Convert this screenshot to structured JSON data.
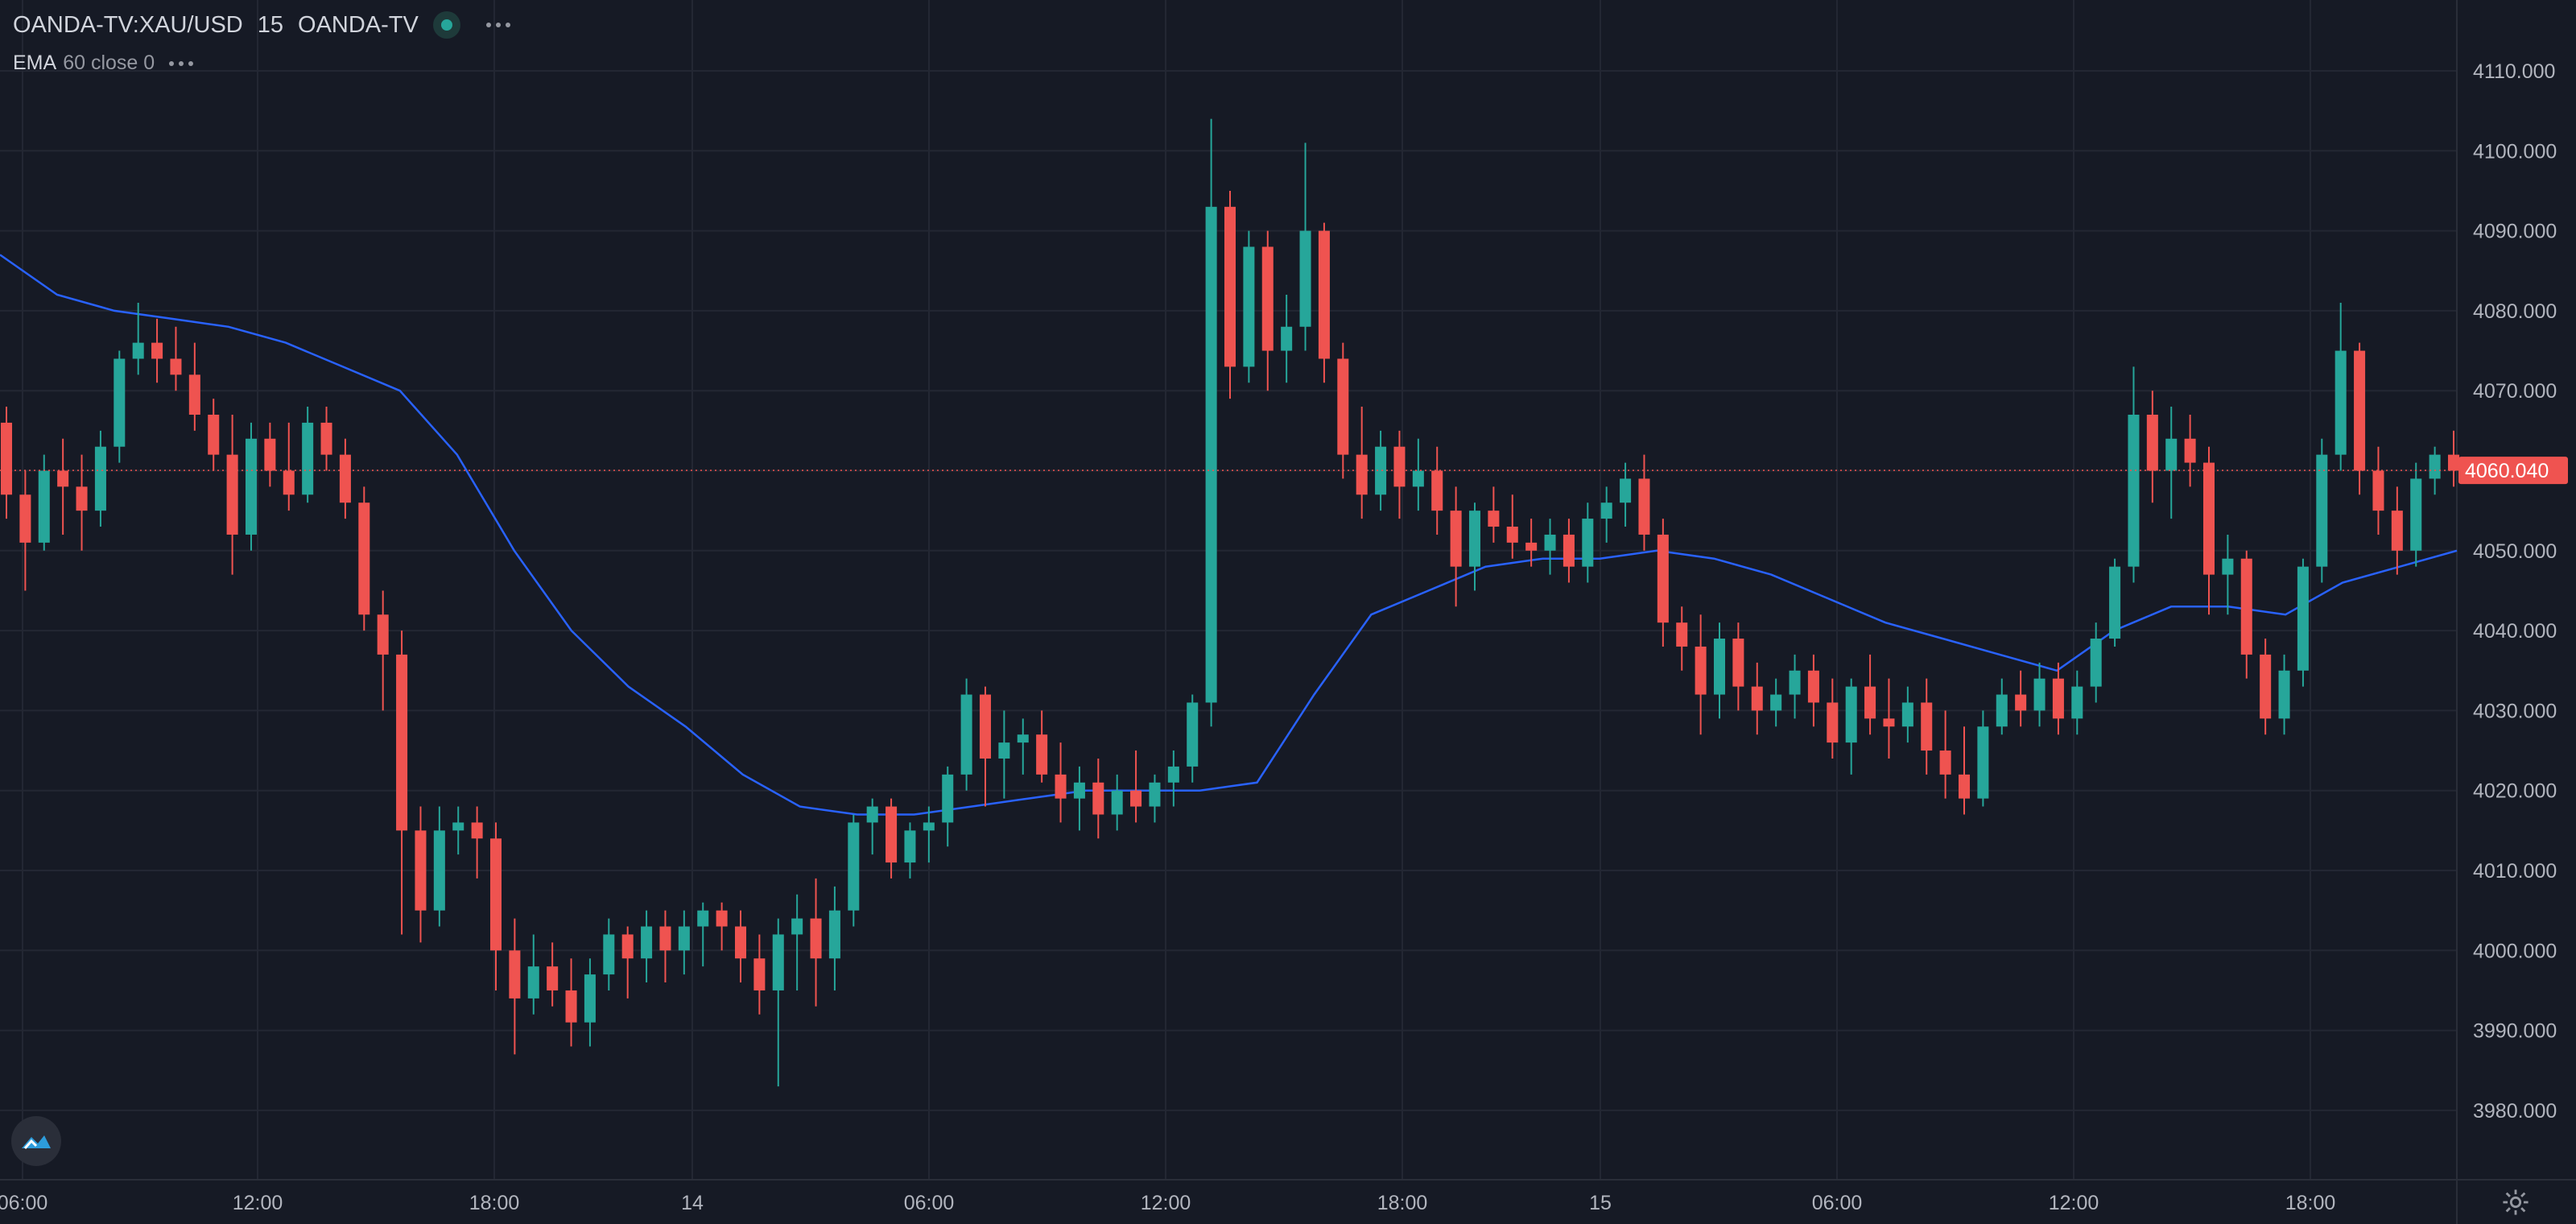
{
  "header": {
    "symbol": "OANDA-TV:XAU/USD",
    "interval": "15",
    "source": "OANDA-TV",
    "indicator_label": "EMA",
    "indicator_params": "60 close 0"
  },
  "colors": {
    "background": "#161a25",
    "grid": "#232733",
    "up": "#26a69a",
    "down": "#ef5350",
    "ema": "#2962ff",
    "text": "#b2b5be",
    "last_price_bg": "#ef5350"
  },
  "icons": {
    "logo": "tradingview-cloud-logo",
    "settings": "gear-icon",
    "status": "live-status-dot",
    "more": "more-dots-icon"
  },
  "chart_data": {
    "type": "candlestick",
    "title": "OANDA-TV:XAU/USD 15 OANDA-TV",
    "ylabel": "",
    "xlabel": "",
    "ylim": [
      3975,
      4115
    ],
    "grid": true,
    "y_ticks": [
      "4110.000",
      "4100.000",
      "4090.000",
      "4080.000",
      "4070.000",
      "4060.000",
      "4050.000",
      "4040.000",
      "4030.000",
      "4020.000",
      "4010.000",
      "4000.000",
      "3990.000",
      "3980.000"
    ],
    "x_ticks": [
      "06:00",
      "12:00",
      "18:00",
      "14",
      "06:00",
      "12:00",
      "18:00",
      "15",
      "06:00",
      "12:00",
      "18:00"
    ],
    "last_price": "4060.040",
    "indicator": {
      "name": "EMA",
      "period": 60,
      "source": "close",
      "offset": 0
    },
    "ema_path": [
      4087,
      4082,
      4080,
      4079,
      4078,
      4076,
      4073,
      4070,
      4062,
      4050,
      4040,
      4033,
      4028,
      4022,
      4018,
      4017,
      4017,
      4018,
      4019,
      4020,
      4020,
      4020,
      4021,
      4032,
      4042,
      4045,
      4048,
      4049,
      4049,
      4050,
      4049,
      4047,
      4044,
      4041,
      4039,
      4037,
      4035,
      4040,
      4043,
      4043,
      4042,
      4046,
      4048,
      4050
    ],
    "candles": [
      [
        4066,
        4068,
        4054,
        4057
      ],
      [
        4057,
        4060,
        4045,
        4051
      ],
      [
        4051,
        4062,
        4050,
        4060
      ],
      [
        4060,
        4064,
        4052,
        4058
      ],
      [
        4058,
        4062,
        4050,
        4055
      ],
      [
        4055,
        4065,
        4053,
        4063
      ],
      [
        4063,
        4075,
        4061,
        4074
      ],
      [
        4074,
        4081,
        4072,
        4076
      ],
      [
        4076,
        4079,
        4071,
        4074
      ],
      [
        4074,
        4078,
        4070,
        4072
      ],
      [
        4072,
        4076,
        4065,
        4067
      ],
      [
        4067,
        4069,
        4060,
        4062
      ],
      [
        4062,
        4067,
        4047,
        4052
      ],
      [
        4052,
        4066,
        4050,
        4064
      ],
      [
        4064,
        4066,
        4058,
        4060
      ],
      [
        4060,
        4066,
        4055,
        4057
      ],
      [
        4057,
        4068,
        4056,
        4066
      ],
      [
        4066,
        4068,
        4060,
        4062
      ],
      [
        4062,
        4064,
        4054,
        4056
      ],
      [
        4056,
        4058,
        4040,
        4042
      ],
      [
        4042,
        4045,
        4030,
        4037
      ],
      [
        4037,
        4040,
        4002,
        4015
      ],
      [
        4015,
        4018,
        4001,
        4005
      ],
      [
        4005,
        4018,
        4003,
        4015
      ],
      [
        4015,
        4018,
        4012,
        4016
      ],
      [
        4016,
        4018,
        4009,
        4014
      ],
      [
        4014,
        4016,
        3995,
        4000
      ],
      [
        4000,
        4004,
        3987,
        3994
      ],
      [
        3994,
        4002,
        3992,
        3998
      ],
      [
        3998,
        4001,
        3993,
        3995
      ],
      [
        3995,
        3999,
        3988,
        3991
      ],
      [
        3991,
        3999,
        3988,
        3997
      ],
      [
        3997,
        4004,
        3995,
        4002
      ],
      [
        4002,
        4003,
        3994,
        3999
      ],
      [
        3999,
        4005,
        3996,
        4003
      ],
      [
        4003,
        4005,
        3996,
        4000
      ],
      [
        4000,
        4005,
        3997,
        4003
      ],
      [
        4003,
        4006,
        3998,
        4005
      ],
      [
        4005,
        4006,
        4000,
        4003
      ],
      [
        4003,
        4005,
        3996,
        3999
      ],
      [
        3999,
        4002,
        3992,
        3995
      ],
      [
        3995,
        4004,
        3983,
        4002
      ],
      [
        4002,
        4007,
        3995,
        4004
      ],
      [
        4004,
        4009,
        3993,
        3999
      ],
      [
        3999,
        4008,
        3995,
        4005
      ],
      [
        4005,
        4017,
        4003,
        4016
      ],
      [
        4016,
        4019,
        4012,
        4018
      ],
      [
        4018,
        4019,
        4009,
        4011
      ],
      [
        4011,
        4016,
        4009,
        4015
      ],
      [
        4015,
        4018,
        4011,
        4016
      ],
      [
        4016,
        4023,
        4013,
        4022
      ],
      [
        4022,
        4034,
        4020,
        4032
      ],
      [
        4032,
        4033,
        4018,
        4024
      ],
      [
        4024,
        4030,
        4019,
        4026
      ],
      [
        4026,
        4029,
        4022,
        4027
      ],
      [
        4027,
        4030,
        4021,
        4022
      ],
      [
        4022,
        4026,
        4016,
        4019
      ],
      [
        4019,
        4023,
        4015,
        4021
      ],
      [
        4021,
        4024,
        4014,
        4017
      ],
      [
        4017,
        4022,
        4015,
        4020
      ],
      [
        4020,
        4025,
        4016,
        4018
      ],
      [
        4018,
        4022,
        4016,
        4021
      ],
      [
        4021,
        4025,
        4018,
        4023
      ],
      [
        4023,
        4032,
        4021,
        4031
      ],
      [
        4031,
        4104,
        4028,
        4093
      ],
      [
        4093,
        4095,
        4069,
        4073
      ],
      [
        4073,
        4090,
        4071,
        4088
      ],
      [
        4088,
        4090,
        4070,
        4075
      ],
      [
        4075,
        4082,
        4071,
        4078
      ],
      [
        4078,
        4101,
        4075,
        4090
      ],
      [
        4090,
        4091,
        4071,
        4074
      ],
      [
        4074,
        4076,
        4059,
        4062
      ],
      [
        4062,
        4068,
        4054,
        4057
      ],
      [
        4057,
        4065,
        4055,
        4063
      ],
      [
        4063,
        4065,
        4054,
        4058
      ],
      [
        4058,
        4064,
        4055,
        4060
      ],
      [
        4060,
        4063,
        4052,
        4055
      ],
      [
        4055,
        4058,
        4043,
        4048
      ],
      [
        4048,
        4056,
        4045,
        4055
      ],
      [
        4055,
        4058,
        4051,
        4053
      ],
      [
        4053,
        4057,
        4049,
        4051
      ],
      [
        4051,
        4054,
        4048,
        4050
      ],
      [
        4050,
        4054,
        4047,
        4052
      ],
      [
        4052,
        4054,
        4046,
        4048
      ],
      [
        4048,
        4056,
        4046,
        4054
      ],
      [
        4054,
        4058,
        4051,
        4056
      ],
      [
        4056,
        4061,
        4053,
        4059
      ],
      [
        4059,
        4062,
        4050,
        4052
      ],
      [
        4052,
        4054,
        4038,
        4041
      ],
      [
        4041,
        4043,
        4035,
        4038
      ],
      [
        4038,
        4042,
        4027,
        4032
      ],
      [
        4032,
        4041,
        4029,
        4039
      ],
      [
        4039,
        4041,
        4030,
        4033
      ],
      [
        4033,
        4036,
        4027,
        4030
      ],
      [
        4030,
        4034,
        4028,
        4032
      ],
      [
        4032,
        4037,
        4029,
        4035
      ],
      [
        4035,
        4037,
        4028,
        4031
      ],
      [
        4031,
        4034,
        4024,
        4026
      ],
      [
        4026,
        4034,
        4022,
        4033
      ],
      [
        4033,
        4037,
        4027,
        4029
      ],
      [
        4029,
        4034,
        4024,
        4028
      ],
      [
        4028,
        4033,
        4026,
        4031
      ],
      [
        4031,
        4034,
        4022,
        4025
      ],
      [
        4025,
        4030,
        4019,
        4022
      ],
      [
        4022,
        4028,
        4017,
        4019
      ],
      [
        4019,
        4030,
        4018,
        4028
      ],
      [
        4028,
        4034,
        4027,
        4032
      ],
      [
        4032,
        4035,
        4028,
        4030
      ],
      [
        4030,
        4036,
        4028,
        4034
      ],
      [
        4034,
        4036,
        4027,
        4029
      ],
      [
        4029,
        4035,
        4027,
        4033
      ],
      [
        4033,
        4041,
        4031,
        4039
      ],
      [
        4039,
        4049,
        4038,
        4048
      ],
      [
        4048,
        4073,
        4046,
        4067
      ],
      [
        4067,
        4070,
        4056,
        4060
      ],
      [
        4060,
        4068,
        4054,
        4064
      ],
      [
        4064,
        4067,
        4058,
        4061
      ],
      [
        4061,
        4063,
        4042,
        4047
      ],
      [
        4047,
        4052,
        4042,
        4049
      ],
      [
        4049,
        4050,
        4034,
        4037
      ],
      [
        4037,
        4039,
        4027,
        4029
      ],
      [
        4029,
        4037,
        4027,
        4035
      ],
      [
        4035,
        4049,
        4033,
        4048
      ],
      [
        4048,
        4064,
        4046,
        4062
      ],
      [
        4062,
        4081,
        4060,
        4075
      ],
      [
        4075,
        4076,
        4057,
        4060
      ],
      [
        4060,
        4063,
        4052,
        4055
      ],
      [
        4055,
        4058,
        4047,
        4050
      ],
      [
        4050,
        4061,
        4048,
        4059
      ],
      [
        4059,
        4063,
        4057,
        4062
      ],
      [
        4062,
        4065,
        4058,
        4060
      ]
    ]
  }
}
